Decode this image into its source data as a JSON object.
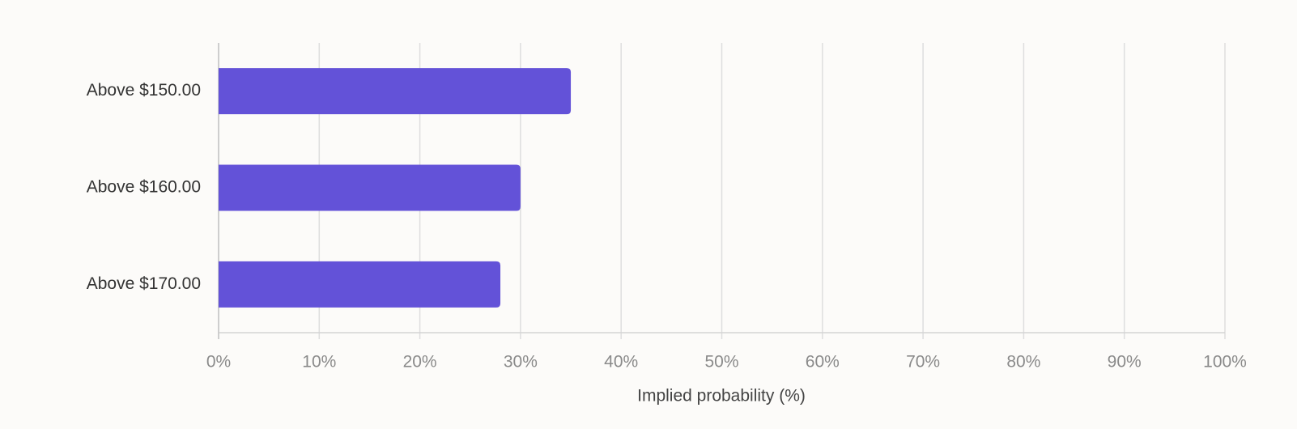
{
  "chart_data": {
    "type": "hbar",
    "categories": [
      "Above $150.00",
      "Above $160.00",
      "Above $170.00"
    ],
    "values": [
      35,
      30,
      28
    ],
    "color": "#6352d8",
    "xlabel": "Implied probability (%)",
    "xlim": [
      0,
      100
    ],
    "xticks": [
      {
        "value": 0,
        "label": "0%"
      },
      {
        "value": 10,
        "label": "10%"
      },
      {
        "value": 20,
        "label": "20%"
      },
      {
        "value": 30,
        "label": "30%"
      },
      {
        "value": 40,
        "label": "40%"
      },
      {
        "value": 50,
        "label": "50%"
      },
      {
        "value": 60,
        "label": "60%"
      },
      {
        "value": 70,
        "label": "70%"
      },
      {
        "value": 80,
        "label": "80%"
      },
      {
        "value": 90,
        "label": "90%"
      },
      {
        "value": 100,
        "label": "100%"
      }
    ],
    "grid": true
  }
}
